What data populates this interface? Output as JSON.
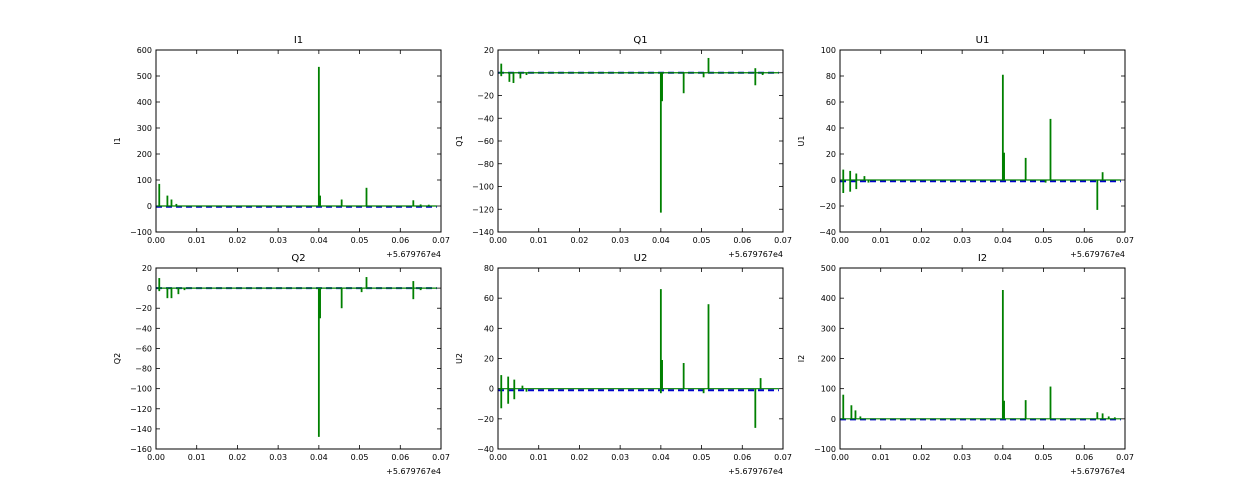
{
  "chart_data": [
    {
      "type": "line",
      "title": "I1",
      "ylabel": "I1",
      "xlim": [
        0.0,
        0.07
      ],
      "ylim": [
        -100,
        600
      ],
      "xticks": [
        "0.00",
        "0.01",
        "0.02",
        "0.03",
        "0.04",
        "0.05",
        "0.06",
        "0.07"
      ],
      "yticks": [
        "−100",
        "0",
        "100",
        "200",
        "300",
        "400",
        "500",
        "600"
      ],
      "x_offset_label": "+5.679767e4",
      "series": [
        {
          "color": "#0000cc",
          "style": "dashed",
          "values": [
            [
              0.0,
              -3
            ],
            [
              0.01,
              -3
            ],
            [
              0.02,
              -3
            ],
            [
              0.03,
              -3
            ],
            [
              0.04,
              -3
            ],
            [
              0.05,
              -3
            ],
            [
              0.06,
              -3
            ],
            [
              0.069,
              -3
            ]
          ]
        },
        {
          "color": "#008000",
          "style": "solid",
          "baseline": 0,
          "spikes": [
            [
              0.0008,
              85
            ],
            [
              0.0028,
              40
            ],
            [
              0.0038,
              25
            ],
            [
              0.005,
              8
            ],
            [
              0.04,
              535
            ],
            [
              0.0403,
              40
            ],
            [
              0.0456,
              25
            ],
            [
              0.0517,
              70
            ],
            [
              0.0632,
              22
            ],
            [
              0.065,
              6
            ],
            [
              0.067,
              5
            ]
          ]
        }
      ]
    },
    {
      "type": "line",
      "title": "Q1",
      "ylabel": "Q1",
      "xlim": [
        0.0,
        0.07
      ],
      "ylim": [
        -140,
        20
      ],
      "xticks": [
        "0.00",
        "0.01",
        "0.02",
        "0.03",
        "0.04",
        "0.05",
        "0.06",
        "0.07"
      ],
      "yticks": [
        "−140",
        "−120",
        "−100",
        "−80",
        "−60",
        "−40",
        "−20",
        "0",
        "20"
      ],
      "x_offset_label": "+5.679767e4",
      "series": [
        {
          "color": "#0000cc",
          "style": "dashed",
          "values": [
            [
              0.0,
              0
            ],
            [
              0.01,
              0
            ],
            [
              0.02,
              0
            ],
            [
              0.03,
              0
            ],
            [
              0.04,
              0
            ],
            [
              0.05,
              0
            ],
            [
              0.06,
              0
            ],
            [
              0.069,
              0
            ]
          ]
        },
        {
          "color": "#008000",
          "style": "solid",
          "baseline": 0,
          "spikes": [
            [
              0.0008,
              8
            ],
            [
              0.0008,
              -3
            ],
            [
              0.0028,
              -8
            ],
            [
              0.0038,
              -9
            ],
            [
              0.0055,
              -5
            ],
            [
              0.007,
              -2
            ],
            [
              0.04,
              -123
            ],
            [
              0.0403,
              -25
            ],
            [
              0.0456,
              -18
            ],
            [
              0.0505,
              -4
            ],
            [
              0.0517,
              13
            ],
            [
              0.0632,
              -11
            ],
            [
              0.0632,
              4
            ],
            [
              0.065,
              -2
            ]
          ]
        }
      ]
    },
    {
      "type": "line",
      "title": "U1",
      "ylabel": "U1",
      "xlim": [
        0.0,
        0.07
      ],
      "ylim": [
        -40,
        100
      ],
      "xticks": [
        "0.00",
        "0.01",
        "0.02",
        "0.03",
        "0.04",
        "0.05",
        "0.06",
        "0.07"
      ],
      "yticks": [
        "−40",
        "−20",
        "0",
        "20",
        "40",
        "60",
        "80",
        "100"
      ],
      "x_offset_label": "+5.679767e4",
      "series": [
        {
          "color": "#0000cc",
          "style": "dashed",
          "values": [
            [
              0.0,
              -1
            ],
            [
              0.01,
              -1
            ],
            [
              0.02,
              -1
            ],
            [
              0.03,
              -1
            ],
            [
              0.04,
              -1
            ],
            [
              0.05,
              -1
            ],
            [
              0.06,
              -1
            ],
            [
              0.069,
              -1
            ]
          ]
        },
        {
          "color": "#008000",
          "style": "solid",
          "baseline": 0,
          "spikes": [
            [
              0.0008,
              8
            ],
            [
              0.0008,
              -10
            ],
            [
              0.0025,
              -9
            ],
            [
              0.0025,
              7
            ],
            [
              0.004,
              5
            ],
            [
              0.004,
              -7
            ],
            [
              0.006,
              3
            ],
            [
              0.007,
              -2
            ],
            [
              0.04,
              81
            ],
            [
              0.0403,
              21
            ],
            [
              0.0456,
              17
            ],
            [
              0.0505,
              -2
            ],
            [
              0.0517,
              47
            ],
            [
              0.0632,
              -23
            ],
            [
              0.0645,
              6
            ]
          ]
        }
      ]
    },
    {
      "type": "line",
      "title": "Q2",
      "ylabel": "Q2",
      "xlim": [
        0.0,
        0.07
      ],
      "ylim": [
        -160,
        20
      ],
      "xticks": [
        "0.00",
        "0.01",
        "0.02",
        "0.03",
        "0.04",
        "0.05",
        "0.06",
        "0.07"
      ],
      "yticks": [
        "−160",
        "−140",
        "−120",
        "−100",
        "−80",
        "−60",
        "−40",
        "−20",
        "0",
        "20"
      ],
      "x_offset_label": "+5.679767e4",
      "series": [
        {
          "color": "#0000cc",
          "style": "dashed",
          "values": [
            [
              0.0,
              0
            ],
            [
              0.01,
              0
            ],
            [
              0.02,
              0
            ],
            [
              0.03,
              0
            ],
            [
              0.04,
              0
            ],
            [
              0.05,
              0
            ],
            [
              0.06,
              0
            ],
            [
              0.069,
              0
            ]
          ]
        },
        {
          "color": "#008000",
          "style": "solid",
          "baseline": 0,
          "spikes": [
            [
              0.0008,
              10
            ],
            [
              0.0008,
              -3
            ],
            [
              0.0028,
              -10
            ],
            [
              0.0038,
              -10
            ],
            [
              0.0055,
              -6
            ],
            [
              0.007,
              -2
            ],
            [
              0.04,
              -148
            ],
            [
              0.0403,
              -30
            ],
            [
              0.0456,
              -20
            ],
            [
              0.0505,
              -4
            ],
            [
              0.0517,
              11
            ],
            [
              0.0632,
              -11
            ],
            [
              0.0632,
              7
            ],
            [
              0.065,
              -2
            ]
          ]
        }
      ]
    },
    {
      "type": "line",
      "title": "U2",
      "ylabel": "U2",
      "xlim": [
        0.0,
        0.07
      ],
      "ylim": [
        -40,
        80
      ],
      "xticks": [
        "0.00",
        "0.01",
        "0.02",
        "0.03",
        "0.04",
        "0.05",
        "0.06",
        "0.07"
      ],
      "yticks": [
        "−40",
        "−20",
        "0",
        "20",
        "40",
        "60",
        "80"
      ],
      "x_offset_label": "+5.679767e4",
      "series": [
        {
          "color": "#0000cc",
          "style": "dashed",
          "values": [
            [
              0.0,
              -1
            ],
            [
              0.01,
              -1
            ],
            [
              0.02,
              -1
            ],
            [
              0.03,
              -1
            ],
            [
              0.04,
              -1
            ],
            [
              0.05,
              -1
            ],
            [
              0.06,
              -1
            ],
            [
              0.069,
              -1
            ]
          ]
        },
        {
          "color": "#008000",
          "style": "solid",
          "baseline": 0,
          "spikes": [
            [
              0.0008,
              9
            ],
            [
              0.0008,
              -13
            ],
            [
              0.0025,
              -10
            ],
            [
              0.0025,
              8
            ],
            [
              0.004,
              6
            ],
            [
              0.004,
              -7
            ],
            [
              0.006,
              2
            ],
            [
              0.007,
              -2
            ],
            [
              0.04,
              66
            ],
            [
              0.04,
              -3
            ],
            [
              0.0403,
              19
            ],
            [
              0.0456,
              17
            ],
            [
              0.0505,
              -3
            ],
            [
              0.0517,
              56
            ],
            [
              0.0632,
              -26
            ],
            [
              0.0645,
              7
            ]
          ]
        }
      ]
    },
    {
      "type": "line",
      "title": "I2",
      "ylabel": "I2",
      "xlim": [
        0.0,
        0.07
      ],
      "ylim": [
        -100,
        500
      ],
      "xticks": [
        "0.00",
        "0.01",
        "0.02",
        "0.03",
        "0.04",
        "0.05",
        "0.06",
        "0.07"
      ],
      "yticks": [
        "−100",
        "0",
        "100",
        "200",
        "300",
        "400",
        "500"
      ],
      "x_offset_label": "+5.679767e4",
      "series": [
        {
          "color": "#0000cc",
          "style": "dashed",
          "values": [
            [
              0.0,
              -2
            ],
            [
              0.01,
              -2
            ],
            [
              0.02,
              -2
            ],
            [
              0.03,
              -2
            ],
            [
              0.04,
              -2
            ],
            [
              0.05,
              -2
            ],
            [
              0.06,
              -2
            ],
            [
              0.069,
              -2
            ]
          ]
        },
        {
          "color": "#008000",
          "style": "solid",
          "baseline": 0,
          "spikes": [
            [
              0.0008,
              80
            ],
            [
              0.0028,
              45
            ],
            [
              0.0038,
              28
            ],
            [
              0.005,
              8
            ],
            [
              0.04,
              427
            ],
            [
              0.0403,
              60
            ],
            [
              0.0456,
              62
            ],
            [
              0.0517,
              107
            ],
            [
              0.0632,
              22
            ],
            [
              0.0645,
              18
            ],
            [
              0.066,
              8
            ],
            [
              0.0675,
              5
            ]
          ]
        }
      ]
    }
  ]
}
